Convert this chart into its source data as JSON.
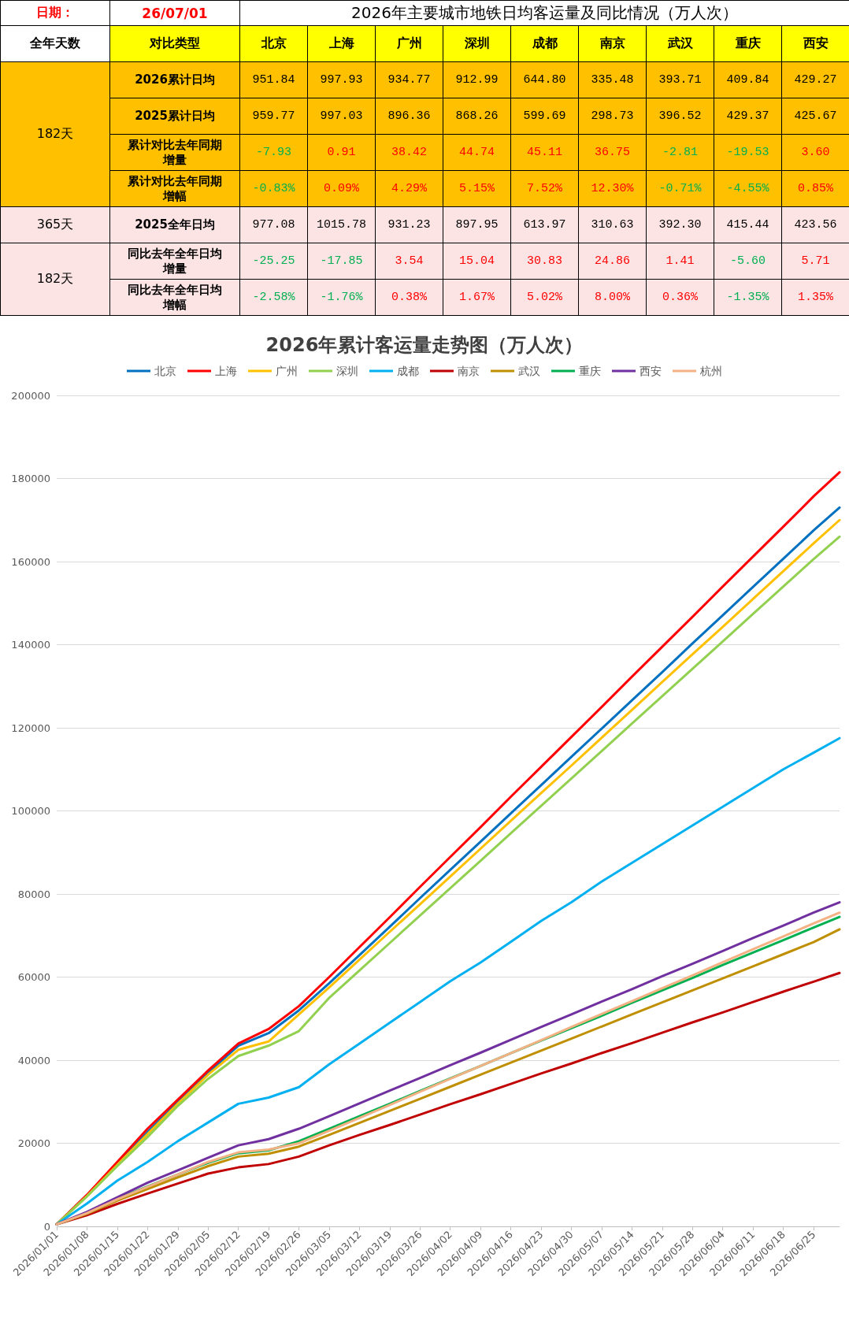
{
  "chart_data": [
    {
      "type": "other",
      "title": "2026年主要城市地铁日均客运量及同比情况（万人次）",
      "annotations": [
        "日期：",
        "26/07/01",
        "全年天数",
        "对比类型",
        "182天",
        "365天",
        "182天"
      ],
      "categories": [
        "北京",
        "上海",
        "广州",
        "深圳",
        "成都",
        "南京",
        "武汉",
        "重庆",
        "西安"
      ],
      "y_categories": [
        "2026累计日均",
        "2025累计日均",
        "累计对比去年同期增量",
        "累计对比去年同期增幅",
        "2025全年日均",
        "同比去年全年日均增量",
        "同比去年全年日均增幅"
      ],
      "cell_labels": [
        [
          "951.84",
          "997.93",
          "934.77",
          "912.99",
          "644.80",
          "335.48",
          "393.71",
          "409.84",
          "429.27"
        ],
        [
          "959.77",
          "997.03",
          "896.36",
          "868.26",
          "599.69",
          "298.73",
          "396.52",
          "429.37",
          "425.67"
        ],
        [
          "-7.93",
          "0.91",
          "38.42",
          "44.74",
          "45.11",
          "36.75",
          "-2.81",
          "-19.53",
          "3.60"
        ],
        [
          "-0.83%",
          "0.09%",
          "4.29%",
          "5.15%",
          "7.52%",
          "12.30%",
          "-0.71%",
          "-4.55%",
          "0.85%"
        ],
        [
          "977.08",
          "1015.78",
          "931.23",
          "897.95",
          "613.97",
          "310.63",
          "392.30",
          "415.44",
          "423.56"
        ],
        [
          "-25.25",
          "-17.85",
          "3.54",
          "15.04",
          "30.83",
          "24.86",
          "1.41",
          "-5.60",
          "5.71"
        ],
        [
          "-2.58%",
          "-1.76%",
          "0.38%",
          "1.67%",
          "5.02%",
          "8.00%",
          "0.36%",
          "-1.35%",
          "1.35%"
        ]
      ]
    },
    {
      "type": "line",
      "title": "2026年累计客运量走势图（万人次）",
      "legend": "top",
      "grid": "y",
      "marker": "none",
      "line_style": "solid",
      "x": [
        "2026-01-01",
        "2026-01-08",
        "2026-01-15",
        "2026-01-22",
        "2026-01-29",
        "2026-02-05",
        "2026-02-12",
        "2026-02-19",
        "2026-02-26",
        "2026-03-05",
        "2026-03-12",
        "2026-03-19",
        "2026-03-26",
        "2026-04-02",
        "2026-04-09",
        "2026-04-16",
        "2026-04-23",
        "2026-04-30",
        "2026-05-07",
        "2026-05-14",
        "2026-05-21",
        "2026-05-28",
        "2026-06-04",
        "2026-06-11",
        "2026-06-18",
        "2026-06-25",
        "2026-07-01"
      ],
      "xlim": [
        "2026-01-01",
        "2026-07-01"
      ],
      "xticks": [
        {
          "value": "2026-01-01",
          "label": "2026/01/01"
        },
        {
          "value": "2026-01-08",
          "label": "2026/01/08"
        },
        {
          "value": "2026-01-15",
          "label": "2026/01/15"
        },
        {
          "value": "2026-01-22",
          "label": "2026/01/22"
        },
        {
          "value": "2026-01-29",
          "label": "2026/01/29"
        },
        {
          "value": "2026-02-05",
          "label": "2026/02/05"
        },
        {
          "value": "2026-02-12",
          "label": "2026/02/12"
        },
        {
          "value": "2026-02-19",
          "label": "2026/02/19"
        },
        {
          "value": "2026-02-26",
          "label": "2026/02/26"
        },
        {
          "value": "2026-03-05",
          "label": "2026/03/05"
        },
        {
          "value": "2026-03-12",
          "label": "2026/03/12"
        },
        {
          "value": "2026-03-19",
          "label": "2026/03/19"
        },
        {
          "value": "2026-03-26",
          "label": "2026/03/26"
        },
        {
          "value": "2026-04-02",
          "label": "2026/04/02"
        },
        {
          "value": "2026-04-09",
          "label": "2026/04/09"
        },
        {
          "value": "2026-04-16",
          "label": "2026/04/16"
        },
        {
          "value": "2026-04-23",
          "label": "2026/04/23"
        },
        {
          "value": "2026-04-30",
          "label": "2026/04/30"
        },
        {
          "value": "2026-05-07",
          "label": "2026/05/07"
        },
        {
          "value": "2026-05-14",
          "label": "2026/05/14"
        },
        {
          "value": "2026-05-21",
          "label": "2026/05/21"
        },
        {
          "value": "2026-05-28",
          "label": "2026/05/28"
        },
        {
          "value": "2026-06-04",
          "label": "2026/06/04"
        },
        {
          "value": "2026-06-11",
          "label": "2026/06/11"
        },
        {
          "value": "2026-06-18",
          "label": "2026/06/18"
        },
        {
          "value": "2026-06-25",
          "label": "2026/06/25"
        }
      ],
      "ylim": [
        0,
        200000
      ],
      "yticks": [
        0,
        20000,
        40000,
        60000,
        80000,
        100000,
        120000,
        140000,
        160000,
        180000,
        200000
      ],
      "series": [
        {
          "name": "北京",
          "color": "#0070c0",
          "values": [
            500,
            7500,
            15000,
            22700,
            30000,
            37000,
            43500,
            46500,
            52000,
            58500,
            65300,
            72100,
            79000,
            85800,
            92600,
            99400,
            106200,
            113000,
            119800,
            126600,
            133400,
            140300,
            147100,
            153900,
            160700,
            167500,
            173000
          ]
        },
        {
          "name": "上海",
          "color": "#ff0000",
          "values": [
            500,
            7600,
            15500,
            23500,
            30500,
            37500,
            44000,
            47500,
            53000,
            60000,
            67200,
            74400,
            81700,
            88900,
            96100,
            103400,
            110600,
            117800,
            125000,
            132300,
            139500,
            146700,
            154000,
            161200,
            168400,
            175700,
            181500
          ]
        },
        {
          "name": "广州",
          "color": "#ffc000",
          "values": [
            500,
            7300,
            14800,
            22200,
            29500,
            36500,
            42500,
            44500,
            51000,
            57500,
            64200,
            70900,
            77500,
            84200,
            90900,
            97600,
            104300,
            110900,
            117600,
            124300,
            131000,
            137700,
            144300,
            151000,
            157700,
            164400,
            170000
          ]
        },
        {
          "name": "深圳",
          "color": "#92d050",
          "values": [
            500,
            7200,
            14500,
            21500,
            29000,
            35500,
            41000,
            43500,
            47000,
            55000,
            61600,
            68200,
            74800,
            81400,
            88000,
            94600,
            101200,
            107800,
            114400,
            121000,
            127600,
            134200,
            140800,
            147400,
            154000,
            160600,
            166000
          ]
        },
        {
          "name": "成都",
          "color": "#00b0f0",
          "values": [
            500,
            5500,
            11000,
            15500,
            20500,
            25000,
            29500,
            31000,
            33500,
            39000,
            44000,
            49000,
            54000,
            59000,
            63500,
            68500,
            73500,
            78000,
            83000,
            87500,
            92000,
            96500,
            101000,
            105500,
            110000,
            114000,
            117500
          ]
        },
        {
          "name": "南京",
          "color": "#c00000",
          "values": [
            500,
            2700,
            5400,
            7900,
            10300,
            12700,
            14200,
            15000,
            16800,
            19500,
            22000,
            24400,
            26900,
            29400,
            31800,
            34300,
            36800,
            39200,
            41700,
            44100,
            46600,
            49100,
            51500,
            54000,
            56500,
            58900,
            61000
          ]
        },
        {
          "name": "武汉",
          "color": "#bf8f00",
          "values": [
            500,
            3000,
            6200,
            9000,
            11800,
            14500,
            16800,
            17500,
            19200,
            22000,
            24900,
            27800,
            30700,
            33600,
            36500,
            39400,
            42300,
            45200,
            48100,
            51000,
            53900,
            56800,
            59700,
            62600,
            65500,
            68400,
            71500
          ]
        },
        {
          "name": "重庆",
          "color": "#00b050",
          "values": [
            500,
            3300,
            6600,
            9600,
            12500,
            15300,
            17600,
            18300,
            20500,
            23500,
            26500,
            29500,
            32600,
            35600,
            38600,
            41700,
            44700,
            47700,
            50700,
            53800,
            56800,
            59800,
            62900,
            65900,
            68900,
            71900,
            74500
          ]
        },
        {
          "name": "西安",
          "color": "#7030a0",
          "values": [
            500,
            3500,
            7000,
            10500,
            13500,
            16500,
            19500,
            21000,
            23500,
            26500,
            29600,
            32700,
            35700,
            38800,
            41800,
            44900,
            48000,
            51000,
            54100,
            57100,
            60200,
            63200,
            66300,
            69400,
            72400,
            75500,
            78000
          ]
        },
        {
          "name": "杭州",
          "color": "#f4b183",
          "values": [
            500,
            3200,
            6500,
            9500,
            12500,
            15500,
            17800,
            18500,
            20000,
            23000,
            26100,
            29200,
            32400,
            35500,
            38600,
            41700,
            44800,
            48000,
            51100,
            54200,
            57300,
            60400,
            63600,
            66700,
            69800,
            72900,
            75500
          ]
        }
      ]
    }
  ]
}
